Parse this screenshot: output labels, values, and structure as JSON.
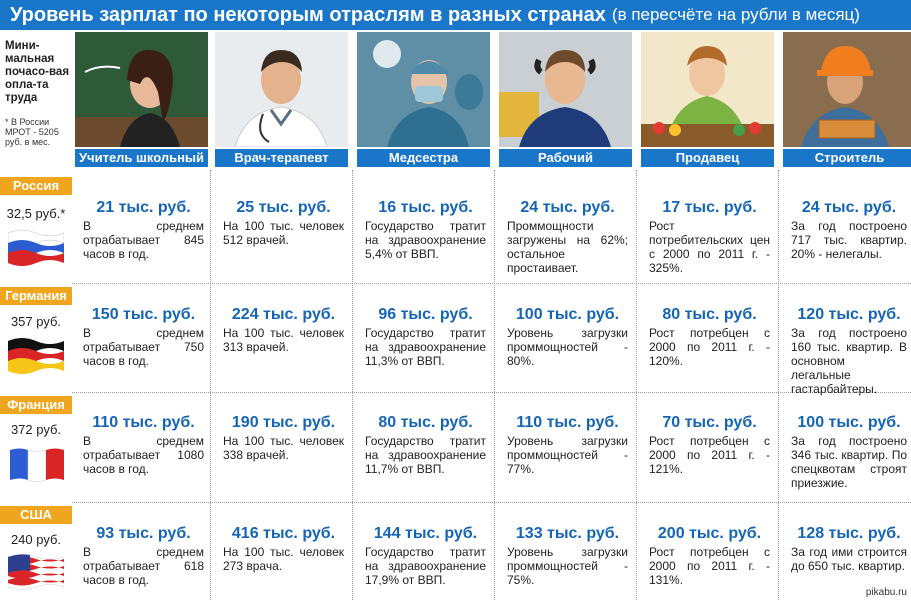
{
  "title": {
    "main": "Уровень зарплат по некоторым отраслям в разных странах",
    "sub": "(в пересчёте на рубли в месяц)"
  },
  "min_wage_header": {
    "label": "Мини-мальная почасо-вая опла-та труда",
    "note": "* В России МРОТ - 5205 руб. в мес."
  },
  "professions": [
    {
      "label": "Учитель школьный",
      "icon": "teacher-photo"
    },
    {
      "label": "Врач-терапевт",
      "icon": "doctor-photo"
    },
    {
      "label": "Медсестра",
      "icon": "nurse-photo"
    },
    {
      "label": "Рабочий",
      "icon": "worker-photo"
    },
    {
      "label": "Продавец",
      "icon": "seller-photo"
    },
    {
      "label": "Строитель",
      "icon": "builder-photo"
    }
  ],
  "countries": [
    {
      "name": "Россия",
      "rate": "32,5 руб.*",
      "flag": "russia-flag",
      "cells": [
        {
          "amount": "21 тыс. руб.",
          "desc": "В среднем отрабатывает 845 часов в год."
        },
        {
          "amount": "25 тыс. руб.",
          "desc": "На 100 тыс. человек 512 врачей."
        },
        {
          "amount": "16 тыс. руб.",
          "desc": "Государство тратит на здравоохранение 5,4% от ВВП."
        },
        {
          "amount": "24 тыс. руб.",
          "desc": "Проммощности загружены на 62%; остальное простаивает."
        },
        {
          "amount": "17 тыс. руб.",
          "desc": "Рост потребительских цен с 2000 по 2011 г. - 325%."
        },
        {
          "amount": "24 тыс. руб.",
          "desc": "За год построено 717 тыс. квартир. 20% - нелегалы."
        }
      ]
    },
    {
      "name": "Германия",
      "rate": "357 руб.",
      "flag": "germany-flag",
      "cells": [
        {
          "amount": "150 тыс. руб.",
          "desc": "В среднем отрабатывает 750 часов в год."
        },
        {
          "amount": "224 тыс. руб.",
          "desc": "На 100 тыс. человек 313 врачей."
        },
        {
          "amount": "96 тыс. руб.",
          "desc": "Государство тратит на здравоохранение 11,3% от ВВП."
        },
        {
          "amount": "100 тыс. руб.",
          "desc": "Уровень загрузки проммощностей - 80%."
        },
        {
          "amount": "80 тыс. руб.",
          "desc": "Рост потребцен с 2000 по 2011 г. - 120%."
        },
        {
          "amount": "120 тыс. руб.",
          "desc": "За год построено 160 тыс. квартир. В основном легальные гастарбайтеры."
        }
      ]
    },
    {
      "name": "Франция",
      "rate": "372 руб.",
      "flag": "france-flag",
      "cells": [
        {
          "amount": "110 тыс. руб.",
          "desc": "В среднем отрабатывает 1080 часов в год."
        },
        {
          "amount": "190 тыс. руб.",
          "desc": "На 100 тыс. человек 338 врачей."
        },
        {
          "amount": "80 тыс. руб.",
          "desc": "Государство тратит на здравоохранение 11,7% от ВВП."
        },
        {
          "amount": "110 тыс. руб.",
          "desc": "Уровень загрузки проммощностей - 77%."
        },
        {
          "amount": "70 тыс. руб.",
          "desc": "Рост потребцен с 2000 по 2011 г. - 121%."
        },
        {
          "amount": "100 тыс. руб.",
          "desc": "За год построено 346 тыс. квартир. По спецквотам строят приезжие."
        }
      ]
    },
    {
      "name": "США",
      "rate": "240 руб.",
      "flag": "usa-flag",
      "cells": [
        {
          "amount": "93 тыс. руб.",
          "desc": "В среднем отрабатывает 618 часов в год."
        },
        {
          "amount": "416 тыс. руб.",
          "desc": "На 100 тыс. человек 273 врача."
        },
        {
          "amount": "144 тыс. руб.",
          "desc": "Государство тратит на здравоохранение 17,9% от ВВП."
        },
        {
          "amount": "133 тыс. руб.",
          "desc": "Уровень загрузки проммощностей - 75%."
        },
        {
          "amount": "200 тыс. руб.",
          "desc": "Рост потребцен с 2000 по 2011 г. - 131%."
        },
        {
          "amount": "128 тыс. руб.",
          "desc": "За год ими строится до 650 тыс. квартир."
        }
      ]
    }
  ],
  "watermark": "pikabu.ru",
  "colors": {
    "accent": "#1976c8",
    "country_tag": "#f0a51f",
    "amount": "#1565b5"
  }
}
